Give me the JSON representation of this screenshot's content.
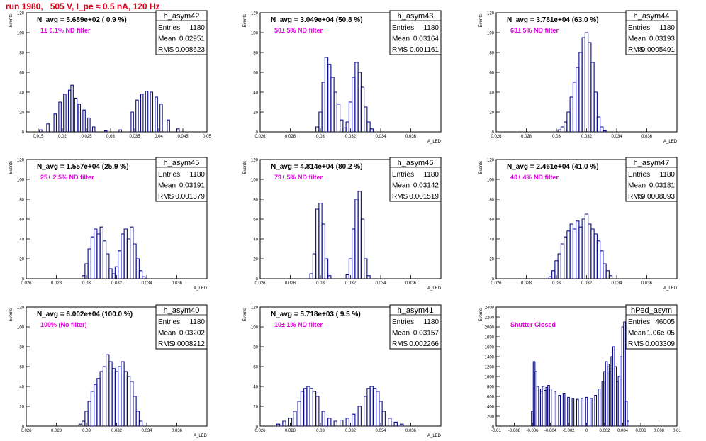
{
  "header": {
    "title": "run 1980,   505 V, I_pe ≈ 0.5 nA, 120 Hz"
  },
  "colors": {
    "hist": "#0a0a8c",
    "annotation": "#e000e0",
    "title": "#e0001b",
    "frame": "#000000"
  },
  "chart_data": [
    {
      "type": "bar",
      "name": "h_asym42",
      "navg": "N_avg = 5.689e+02 ( 0.9 %)",
      "annotation": "1± 0.1% ND filter",
      "stats": {
        "entries": "1180",
        "mean": "0.02951",
        "rms": "0.008623"
      },
      "ylabel": "Events",
      "xlabel": "",
      "xlim": [
        0.0125,
        0.05
      ],
      "ylim": [
        0,
        120
      ],
      "xticks": [
        "0.015",
        "0.02",
        "0.025",
        "0.03",
        "0.035",
        "0.04",
        "0.045",
        "0.05"
      ],
      "xtick_values": [
        0.015,
        0.02,
        0.025,
        0.03,
        0.035,
        0.04,
        0.045,
        0.05
      ],
      "yticks": [
        0,
        20,
        40,
        60,
        80,
        100,
        120
      ],
      "x": [
        0.0155,
        0.017,
        0.0185,
        0.0195,
        0.0205,
        0.0215,
        0.022,
        0.0228,
        0.0235,
        0.0245,
        0.0255,
        0.0265,
        0.029,
        0.032,
        0.0345,
        0.0355,
        0.0365,
        0.0375,
        0.0385,
        0.0395,
        0.0405,
        0.042,
        0.044
      ],
      "values": [
        2,
        8,
        18,
        30,
        38,
        42,
        47,
        34,
        28,
        22,
        14,
        5,
        1,
        2,
        20,
        32,
        38,
        41,
        40,
        35,
        28,
        12,
        3
      ]
    },
    {
      "type": "bar",
      "name": "h_asym43",
      "navg": "N_avg = 3.049e+04 (50.8 %)",
      "annotation": "50± 5% ND filter",
      "stats": {
        "entries": "1180",
        "mean": "0.03164",
        "rms": "0.001161"
      },
      "ylabel": "Events",
      "xlabel": "A_LED",
      "xlim": [
        0.026,
        0.038
      ],
      "ylim": [
        0,
        120
      ],
      "xticks": [
        "0.026",
        "0.028",
        "0.03",
        "0.032",
        "0.034",
        "0.036"
      ],
      "xtick_values": [
        0.026,
        0.028,
        0.03,
        0.032,
        0.034,
        0.036
      ],
      "yticks": [
        0,
        20,
        40,
        60,
        80,
        100,
        120
      ],
      "x": [
        0.0298,
        0.03,
        0.0302,
        0.0304,
        0.0306,
        0.0308,
        0.031,
        0.0312,
        0.0314,
        0.0316,
        0.0318,
        0.032,
        0.0322,
        0.0324,
        0.0326,
        0.0328,
        0.033,
        0.0332,
        0.0334
      ],
      "values": [
        5,
        20,
        50,
        75,
        68,
        55,
        40,
        28,
        12,
        4,
        10,
        30,
        55,
        70,
        60,
        45,
        25,
        10,
        3
      ]
    },
    {
      "type": "bar",
      "name": "h_asym44",
      "navg": "N_avg = 3.781e+04 (63.0 %)",
      "annotation": "63± 5% ND filter",
      "stats": {
        "entries": "1180",
        "mean": "0.03193",
        "rms": "0.0005491"
      },
      "ylabel": "Events",
      "xlabel": "A_LED",
      "xlim": [
        0.026,
        0.038
      ],
      "ylim": [
        0,
        120
      ],
      "xticks": [
        "0.026",
        "0.028",
        "0.03",
        "0.032",
        "0.034",
        "0.036"
      ],
      "xtick_values": [
        0.026,
        0.028,
        0.03,
        0.032,
        0.034,
        0.036
      ],
      "yticks": [
        0,
        20,
        40,
        60,
        80,
        100,
        120
      ],
      "x": [
        0.0302,
        0.0304,
        0.0306,
        0.0308,
        0.031,
        0.0312,
        0.0314,
        0.0316,
        0.0318,
        0.032,
        0.0322,
        0.0324,
        0.0326,
        0.0328,
        0.033,
        0.0332
      ],
      "values": [
        2,
        5,
        10,
        20,
        35,
        50,
        65,
        80,
        95,
        100,
        90,
        70,
        40,
        15,
        5,
        1
      ]
    },
    {
      "type": "bar",
      "name": "h_asym45",
      "navg": "N_avg = 1.557e+04 (25.9 %)",
      "annotation": "25± 2.5% ND filter",
      "stats": {
        "entries": "1180",
        "mean": "0.03191",
        "rms": "0.001379"
      },
      "ylabel": "Events",
      "xlabel": "A_LED",
      "xlim": [
        0.026,
        0.038
      ],
      "ylim": [
        0,
        120
      ],
      "xticks": [
        "0.026",
        "0.028",
        "0.03",
        "0.032",
        "0.034",
        "0.036"
      ],
      "xtick_values": [
        0.026,
        0.028,
        0.03,
        0.032,
        0.034,
        0.036
      ],
      "yticks": [
        0,
        20,
        40,
        60,
        80,
        100,
        120
      ],
      "x": [
        0.0298,
        0.03,
        0.0302,
        0.0304,
        0.0306,
        0.0308,
        0.031,
        0.0312,
        0.0314,
        0.0316,
        0.0318,
        0.032,
        0.0322,
        0.0324,
        0.0326,
        0.0328,
        0.033,
        0.0332,
        0.0334,
        0.0336,
        0.0338
      ],
      "values": [
        3,
        15,
        30,
        42,
        50,
        45,
        52,
        38,
        25,
        10,
        5,
        12,
        28,
        45,
        50,
        40,
        52,
        35,
        20,
        8,
        2
      ]
    },
    {
      "type": "bar",
      "name": "h_asym46",
      "navg": "N_avg = 4.814e+04 (80.2 %)",
      "annotation": "79± 5% ND filter",
      "stats": {
        "entries": "1180",
        "mean": "0.03142",
        "rms": "0.001519"
      },
      "ylabel": "Events",
      "xlabel": "A_LED",
      "xlim": [
        0.026,
        0.038
      ],
      "ylim": [
        0,
        120
      ],
      "xticks": [
        "0.026",
        "0.028",
        "0.03",
        "0.032",
        "0.034",
        "0.036"
      ],
      "xtick_values": [
        0.026,
        0.028,
        0.03,
        0.032,
        0.034,
        0.036
      ],
      "yticks": [
        0,
        20,
        40,
        60,
        80,
        100,
        120
      ],
      "x": [
        0.0294,
        0.0296,
        0.0298,
        0.03,
        0.0302,
        0.0304,
        0.0306,
        0.0318,
        0.032,
        0.0322,
        0.0324,
        0.0326,
        0.0328,
        0.033,
        0.0332
      ],
      "values": [
        5,
        25,
        70,
        76,
        55,
        20,
        3,
        4,
        20,
        50,
        80,
        88,
        60,
        20,
        3
      ]
    },
    {
      "type": "bar",
      "name": "h_asym47",
      "navg": "N_avg = 2.461e+04 (41.0 %)",
      "annotation": "40± 4% ND filter",
      "stats": {
        "entries": "1180",
        "mean": "0.03181",
        "rms": "0.0008093"
      },
      "ylabel": "Events",
      "xlabel": "A_LED",
      "xlim": [
        0.026,
        0.038
      ],
      "ylim": [
        0,
        120
      ],
      "xticks": [
        "0.026",
        "0.028",
        "0.03",
        "0.032",
        "0.034",
        "0.036"
      ],
      "xtick_values": [
        0.026,
        0.028,
        0.03,
        0.032,
        0.034,
        0.036
      ],
      "yticks": [
        0,
        20,
        40,
        60,
        80,
        100,
        120
      ],
      "x": [
        0.0296,
        0.0298,
        0.03,
        0.0302,
        0.0304,
        0.0306,
        0.0308,
        0.031,
        0.0312,
        0.0314,
        0.0316,
        0.0318,
        0.032,
        0.0322,
        0.0324,
        0.0326,
        0.0328,
        0.033,
        0.0332,
        0.0334,
        0.0336
      ],
      "values": [
        2,
        8,
        18,
        25,
        35,
        42,
        48,
        55,
        50,
        58,
        52,
        60,
        65,
        55,
        50,
        45,
        38,
        28,
        15,
        8,
        3
      ]
    },
    {
      "type": "bar",
      "name": "h_asym40",
      "navg": "N_avg = 6.002e+04 (100.0 %)",
      "annotation": "100% (No filter)",
      "stats": {
        "entries": "1180",
        "mean": "0.03202",
        "rms": "0.0008212"
      },
      "ylabel": "Events",
      "xlabel": "A_LED",
      "xlim": [
        0.026,
        0.038
      ],
      "ylim": [
        0,
        120
      ],
      "xticks": [
        "0.026",
        "0.028",
        "0.03",
        "0.032",
        "0.034",
        "0.036"
      ],
      "xtick_values": [
        0.026,
        0.028,
        0.03,
        0.032,
        0.034,
        0.036
      ],
      "yticks": [
        0,
        20,
        40,
        60,
        80,
        100,
        120
      ],
      "x": [
        0.0296,
        0.0298,
        0.03,
        0.0302,
        0.0304,
        0.0306,
        0.0308,
        0.031,
        0.0312,
        0.0314,
        0.0316,
        0.0318,
        0.032,
        0.0322,
        0.0324,
        0.0326,
        0.0328,
        0.033,
        0.0332,
        0.0334,
        0.0336
      ],
      "values": [
        2,
        5,
        15,
        25,
        35,
        42,
        48,
        55,
        60,
        72,
        65,
        58,
        55,
        60,
        65,
        55,
        50,
        45,
        30,
        15,
        5
      ]
    },
    {
      "type": "bar",
      "name": "h_asym41",
      "navg": "N_avg = 5.718e+03 ( 9.5 %)",
      "annotation": "10± 1% ND filter",
      "stats": {
        "entries": "1180",
        "mean": "0.03157",
        "rms": "0.002266"
      },
      "ylabel": "Events",
      "xlabel": "A_LED",
      "xlim": [
        0.026,
        0.038
      ],
      "ylim": [
        0,
        120
      ],
      "xticks": [
        "0.026",
        "0.028",
        "0.03",
        "0.032",
        "0.034",
        "0.036"
      ],
      "xtick_values": [
        0.026,
        0.028,
        0.03,
        0.032,
        0.034,
        0.036
      ],
      "yticks": [
        0,
        20,
        40,
        60,
        80,
        100,
        120
      ],
      "x": [
        0.0272,
        0.0276,
        0.028,
        0.0283,
        0.0286,
        0.0288,
        0.029,
        0.0292,
        0.0294,
        0.0296,
        0.0298,
        0.0302,
        0.0306,
        0.031,
        0.0314,
        0.0318,
        0.0322,
        0.0326,
        0.033,
        0.0332,
        0.0334,
        0.0336,
        0.0338,
        0.034,
        0.0342,
        0.0346,
        0.035,
        0.0354
      ],
      "values": [
        2,
        5,
        8,
        15,
        25,
        35,
        38,
        40,
        38,
        35,
        30,
        15,
        8,
        5,
        6,
        8,
        12,
        20,
        30,
        38,
        40,
        38,
        35,
        25,
        15,
        8,
        4,
        2
      ]
    },
    {
      "type": "bar",
      "name": "hPed_asym",
      "navg": "",
      "annotation": "Shutter Closed",
      "stats": {
        "entries": "46005",
        "mean": "-1.06e-05",
        "rms": "0.003309"
      },
      "ylabel": "Events",
      "xlabel": "",
      "xlim": [
        -0.01,
        0.01
      ],
      "ylim": [
        0,
        2400
      ],
      "xticks": [
        "-0.01",
        "-0.008",
        "-0.006",
        "-0.004",
        "-0.002",
        "0",
        "0.002",
        "0.004",
        "0.006",
        "0.008",
        "0.01"
      ],
      "xtick_values": [
        -0.01,
        -0.008,
        -0.006,
        -0.004,
        -0.002,
        0,
        0.002,
        0.004,
        0.006,
        0.008,
        0.01
      ],
      "yticks": [
        0,
        200,
        400,
        600,
        800,
        1000,
        1200,
        1400,
        1600,
        1800,
        2000,
        2200,
        2400
      ],
      "x": [
        -0.006,
        -0.0058,
        -0.0056,
        -0.0054,
        -0.0052,
        -0.005,
        -0.0048,
        -0.0046,
        -0.0044,
        -0.0042,
        -0.004,
        -0.0035,
        -0.003,
        -0.0025,
        -0.002,
        -0.0015,
        -0.001,
        -0.0005,
        0,
        0.0005,
        0.001,
        0.0014,
        0.0018,
        0.002,
        0.0022,
        0.0024,
        0.0026,
        0.0028,
        0.003,
        0.0032,
        0.0034,
        0.0036,
        0.0038,
        0.004,
        0.0042,
        0.0044,
        0.0046
      ],
      "values": [
        300,
        1300,
        1100,
        800,
        750,
        700,
        800,
        720,
        780,
        820,
        750,
        700,
        620,
        650,
        580,
        560,
        540,
        560,
        580,
        560,
        620,
        750,
        900,
        1100,
        1300,
        1250,
        1100,
        1400,
        1600,
        1200,
        900,
        1000,
        1400,
        2000,
        2100,
        500,
        100
      ]
    }
  ]
}
